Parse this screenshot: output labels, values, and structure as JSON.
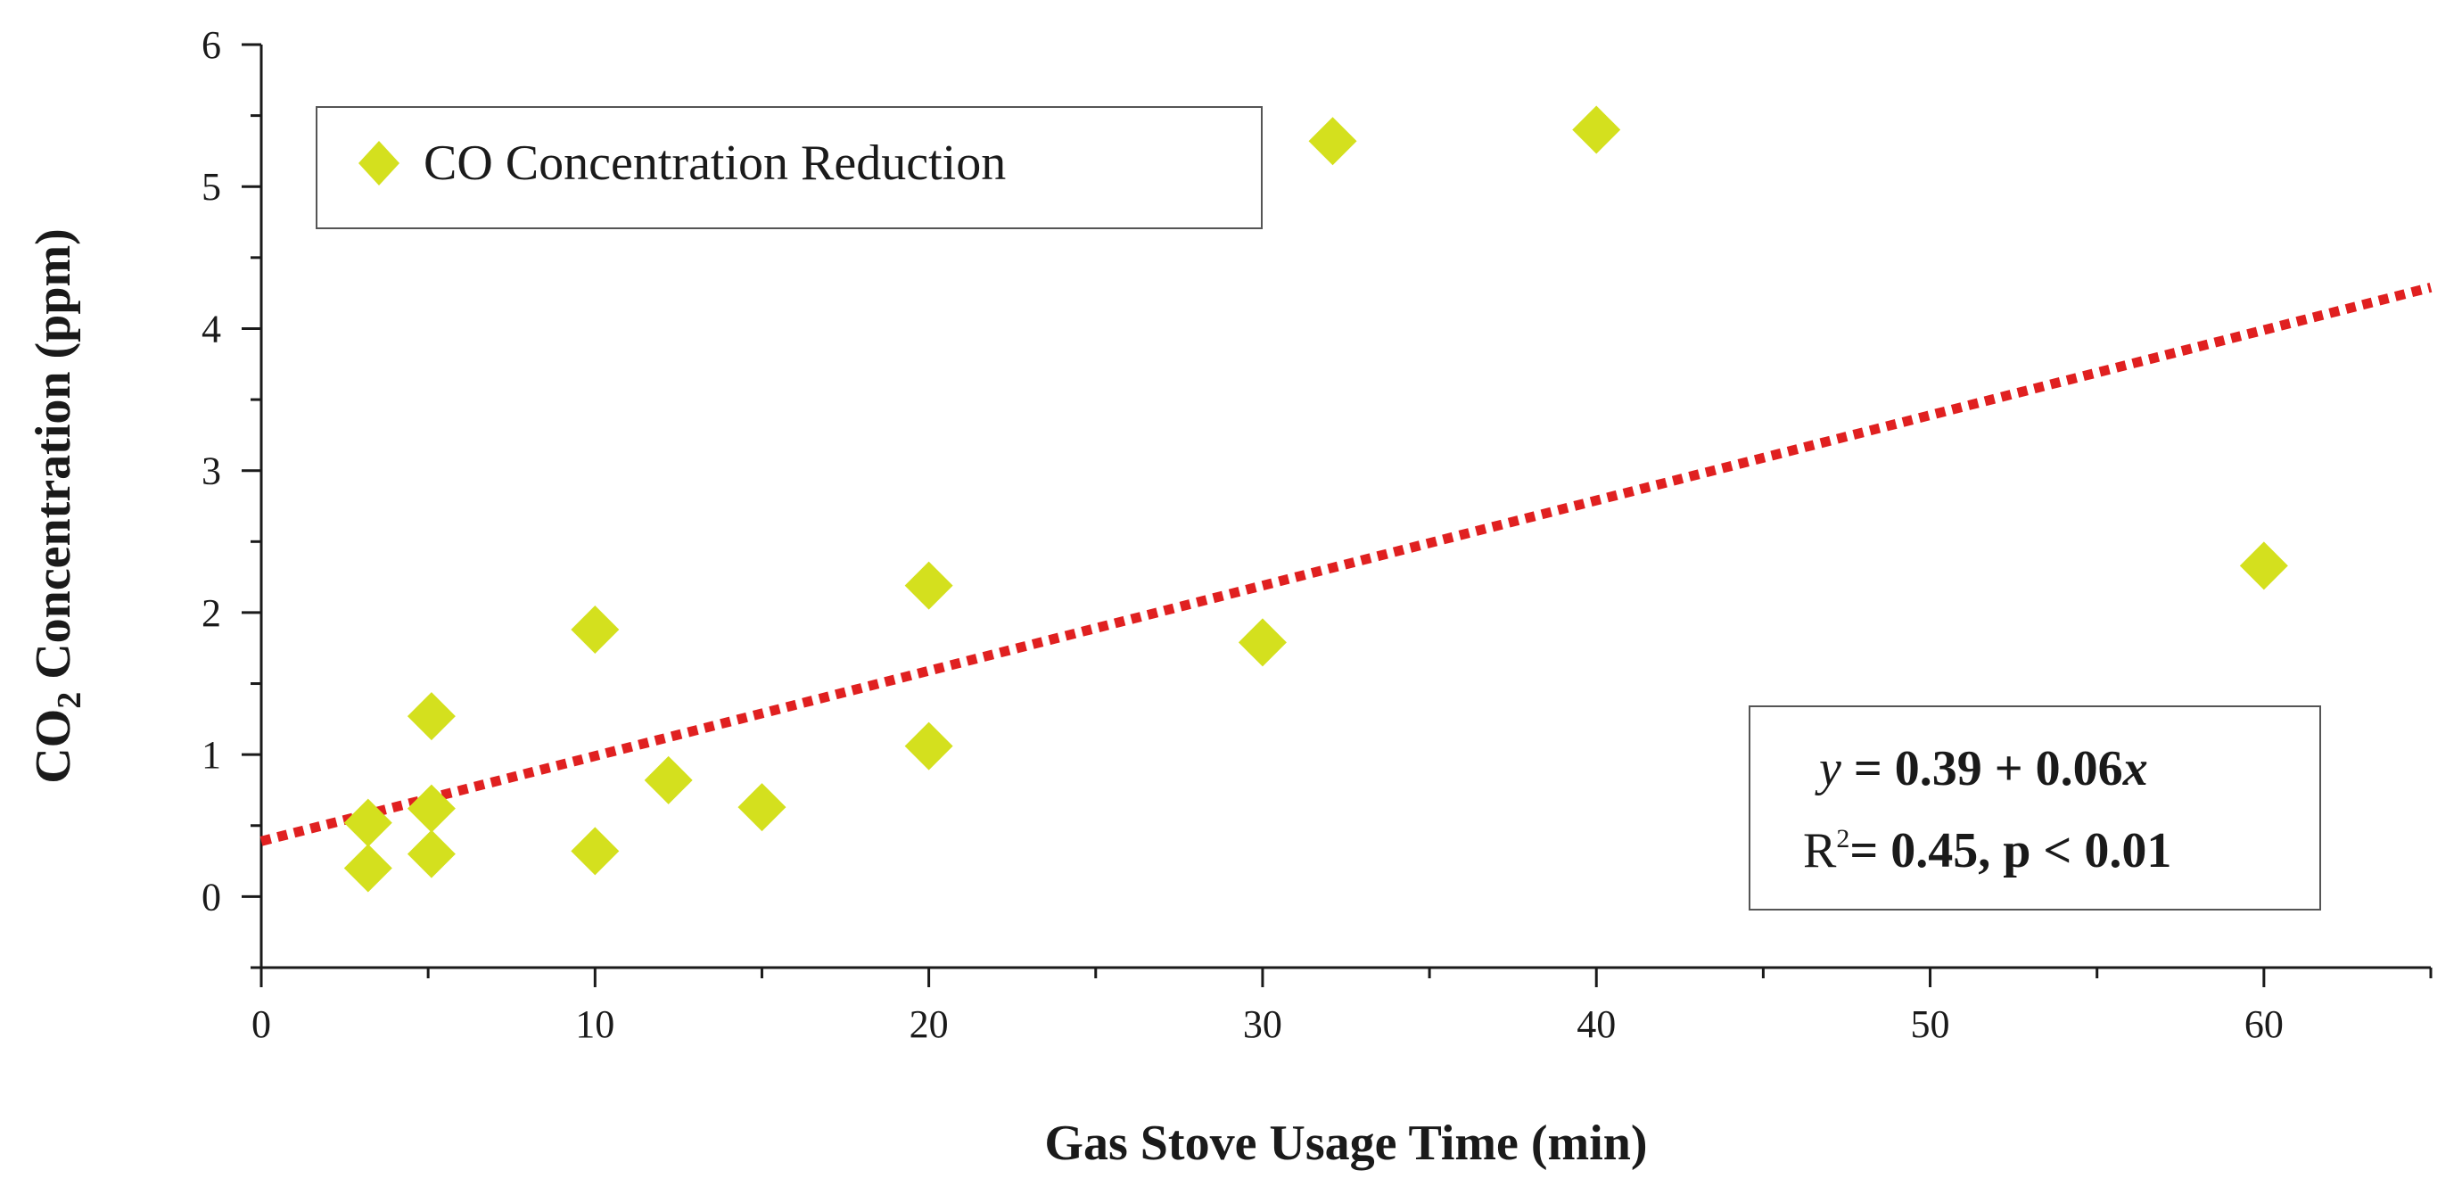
{
  "chart_data": {
    "type": "scatter",
    "xlabel": "Gas Stove Usage Time (min)",
    "ylabel": "CO2 Concentration (ppm)",
    "ylabel_parts": {
      "main": "CO",
      "sub": "2",
      "rest": " Concentration (ppm)"
    },
    "xlim": [
      0,
      65
    ],
    "ylim": [
      -0.5,
      6
    ],
    "x_ticks": [
      0,
      10,
      20,
      30,
      40,
      50,
      60
    ],
    "x_minor_ticks": [
      5,
      15,
      25,
      35,
      45,
      55,
      65
    ],
    "y_ticks": [
      0,
      1,
      2,
      3,
      4,
      5,
      6
    ],
    "y_minor_ticks": [
      -0.5,
      0.5,
      1.5,
      2.5,
      3.5,
      4.5,
      5.5
    ],
    "grid": false,
    "legend_position": "top-left",
    "series": [
      {
        "name": "CO Concentration Reduction",
        "marker": "diamond",
        "color": "#d4e01e",
        "points": [
          {
            "x": 3.2,
            "y": 0.2
          },
          {
            "x": 3.2,
            "y": 0.52
          },
          {
            "x": 5.1,
            "y": 0.3
          },
          {
            "x": 5.1,
            "y": 0.62
          },
          {
            "x": 5.1,
            "y": 1.27
          },
          {
            "x": 10,
            "y": 0.32
          },
          {
            "x": 10,
            "y": 1.88
          },
          {
            "x": 12.2,
            "y": 0.82
          },
          {
            "x": 15,
            "y": 0.63
          },
          {
            "x": 20,
            "y": 1.06
          },
          {
            "x": 20,
            "y": 2.19
          },
          {
            "x": 30,
            "y": 1.79
          },
          {
            "x": 32.1,
            "y": 5.32
          },
          {
            "x": 40,
            "y": 5.4
          },
          {
            "x": 60,
            "y": 2.33
          }
        ]
      }
    ],
    "trendline": {
      "style": "dotted",
      "color": "#e02020",
      "intercept": 0.39,
      "slope": 0.06,
      "x_range": [
        0,
        65
      ]
    },
    "annotation": {
      "eq_y": "y",
      "eq_rest": " = 0.39 + 0.06",
      "eq_x": "x",
      "r2_r": "R",
      "r2_sup": "2",
      "r2_rest": "= 0.45, p < 0.01",
      "position": "bottom-right"
    }
  }
}
